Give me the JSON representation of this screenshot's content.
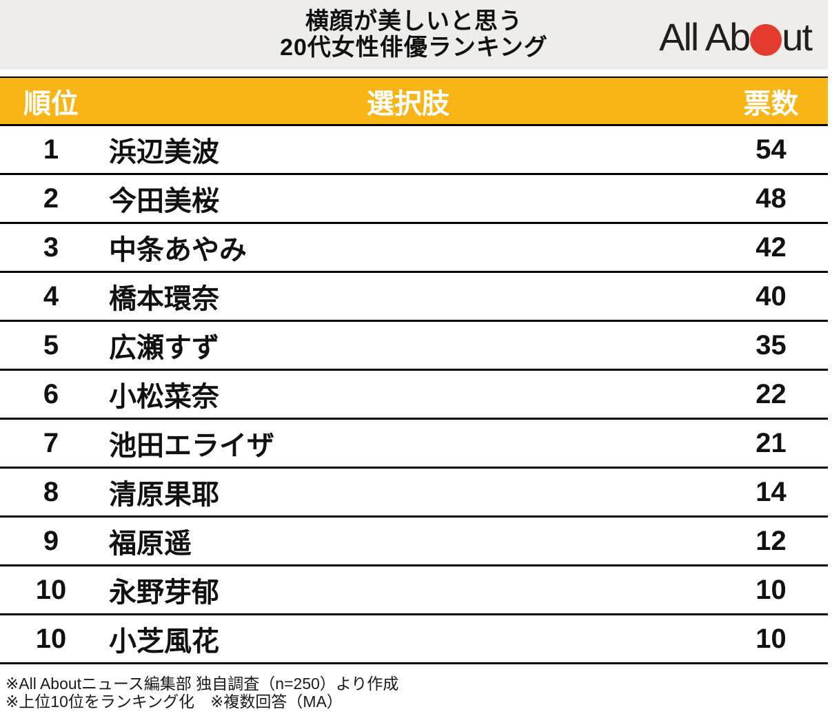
{
  "header": {
    "title_line1": "横顔が美しいと思う",
    "title_line2": "20代女性俳優ランキング",
    "full_title": "横顔が美しいと思う20代女性俳優ランキング",
    "logo": {
      "name": "All About",
      "part1": "All Ab",
      "part2": "ut",
      "dot_color": "#E33B2E"
    }
  },
  "table": {
    "columns": {
      "rank": "順位",
      "choice": "選択肢",
      "votes": "票数"
    },
    "rows": [
      {
        "rank": "1",
        "name": "浜辺美波",
        "votes": "54"
      },
      {
        "rank": "2",
        "name": "今田美桜",
        "votes": "48"
      },
      {
        "rank": "3",
        "name": "中条あやみ",
        "votes": "42"
      },
      {
        "rank": "4",
        "name": "橋本環奈",
        "votes": "40"
      },
      {
        "rank": "5",
        "name": "広瀬すず",
        "votes": "35"
      },
      {
        "rank": "6",
        "name": "小松菜奈",
        "votes": "22"
      },
      {
        "rank": "7",
        "name": "池田エライザ",
        "votes": "21"
      },
      {
        "rank": "8",
        "name": "清原果耶",
        "votes": "14"
      },
      {
        "rank": "9",
        "name": "福原遥",
        "votes": "12"
      },
      {
        "rank": "10",
        "name": "永野芽郁",
        "votes": "10"
      },
      {
        "rank": "10",
        "name": "小芝風花",
        "votes": "10"
      }
    ]
  },
  "footer": {
    "line1": "※All Aboutニュース編集部 独自調査（n=250）より作成",
    "line2": "※上位10位をランキング化　※複数回答（MA）"
  },
  "colors": {
    "accent_orange": "#F9B515",
    "title_band_gray": "#EEEDEA",
    "logo_red": "#E33B2E",
    "border_black": "#000000",
    "header_text_white": "#FFFFFF"
  },
  "chart_data": {
    "type": "table",
    "title": "横顔が美しいと思う20代女性俳優ランキング",
    "columns": [
      "順位",
      "選択肢",
      "票数"
    ],
    "categories": [
      "浜辺美波",
      "今田美桜",
      "中条あやみ",
      "橋本環奈",
      "広瀬すず",
      "小松菜奈",
      "池田エライザ",
      "清原果耶",
      "福原遥",
      "永野芽郁",
      "小芝風花"
    ],
    "ranks": [
      1,
      2,
      3,
      4,
      5,
      6,
      7,
      8,
      9,
      10,
      10
    ],
    "values": [
      54,
      48,
      42,
      40,
      35,
      22,
      21,
      14,
      12,
      10,
      10
    ],
    "source_note": "※All Aboutニュース編集部 独自調査（n=250）より作成 ※上位10位をランキング化 ※複数回答（MA）"
  }
}
